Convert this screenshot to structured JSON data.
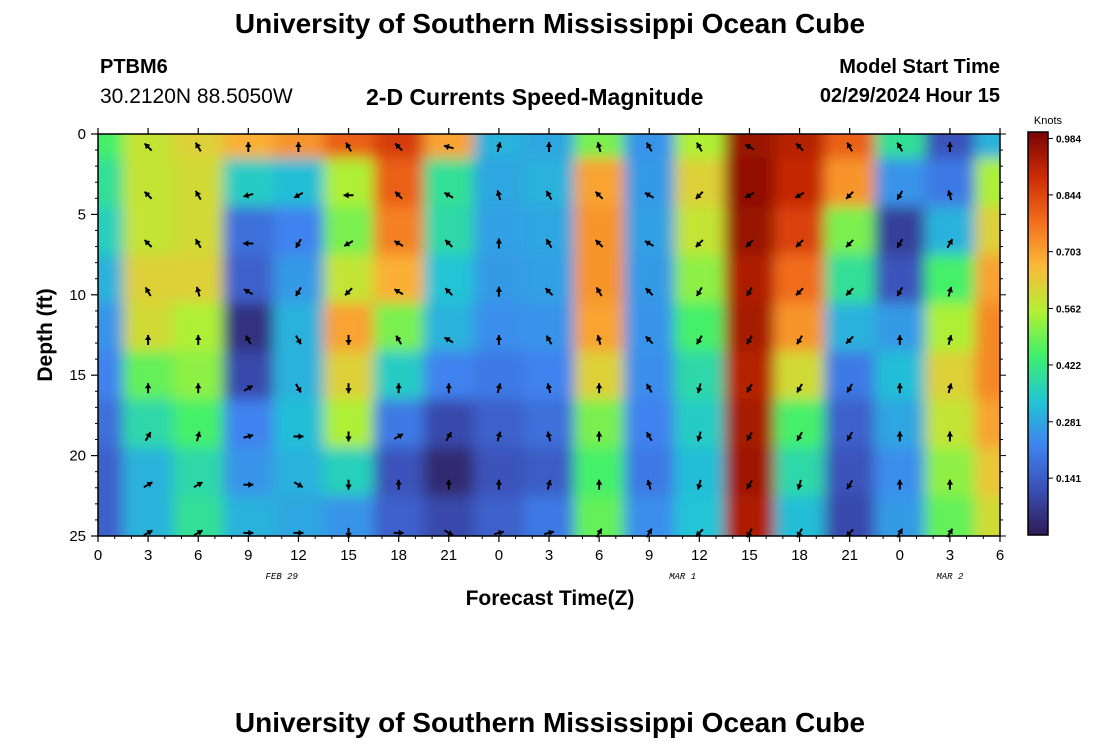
{
  "header": {
    "title": "University of Southern Mississippi Ocean Cube",
    "station": "PTBM6",
    "coordinates": "30.2120N  88.5050W",
    "subtitle": "2-D Currents Speed-Magnitude",
    "model_start_label": "Model Start Time",
    "model_start_value": "02/29/2024 Hour 15"
  },
  "footer": {
    "title": "University of Southern Mississippi Ocean Cube"
  },
  "chart_data": {
    "type": "heatmap",
    "title": "2-D Currents Speed-Magnitude",
    "xlabel": "Forecast Time(Z)",
    "ylabel": "Depth (ft)",
    "x_hours": [
      0,
      3,
      6,
      9,
      12,
      15,
      18,
      21,
      24,
      27,
      30,
      33,
      36,
      39,
      42,
      45,
      48,
      51,
      54
    ],
    "x_tick_labels": [
      "0",
      "3",
      "6",
      "9",
      "12",
      "15",
      "18",
      "21",
      "0",
      "3",
      "6",
      "9",
      "12",
      "15",
      "18",
      "21",
      "0",
      "3",
      "6"
    ],
    "date_labels": [
      {
        "label": "FEB 29",
        "hour": 11
      },
      {
        "label": "MAR 1",
        "hour": 35
      },
      {
        "label": "MAR 2",
        "hour": 51
      }
    ],
    "xlim": [
      0,
      54
    ],
    "y_ticks": [
      0,
      5,
      10,
      15,
      20,
      25
    ],
    "ylim": [
      0,
      25
    ],
    "y_inverted": true,
    "colorbar": {
      "title": "Knots",
      "ticks": [
        0.141,
        0.281,
        0.422,
        0.562,
        0.703,
        0.844,
        0.984
      ],
      "tick_labels": [
        "0.141",
        "0.281",
        "0.422",
        "0.562",
        "0.703",
        "0.844",
        "0.984"
      ],
      "range": [
        0.0,
        1.0
      ],
      "colors": [
        "#2d1b55",
        "#3a4fb5",
        "#3f83f0",
        "#20c6d4",
        "#3ef06c",
        "#b3f032",
        "#fbb93a",
        "#f26e1c",
        "#cc2c06",
        "#7a0403"
      ]
    },
    "depth_rows_ft": [
      0,
      3,
      6,
      9,
      12,
      15,
      18,
      21,
      24
    ],
    "speed_knots": [
      [
        0.45,
        0.58,
        0.62,
        0.68,
        0.72,
        0.8,
        0.86,
        0.7,
        0.3,
        0.28,
        0.5,
        0.25,
        0.55,
        0.96,
        0.92,
        0.8,
        0.4,
        0.12,
        0.3
      ],
      [
        0.4,
        0.58,
        0.6,
        0.35,
        0.32,
        0.55,
        0.8,
        0.4,
        0.28,
        0.3,
        0.7,
        0.26,
        0.62,
        0.97,
        0.9,
        0.72,
        0.25,
        0.2,
        0.55
      ],
      [
        0.36,
        0.58,
        0.6,
        0.18,
        0.22,
        0.5,
        0.75,
        0.38,
        0.27,
        0.28,
        0.72,
        0.27,
        0.58,
        0.96,
        0.85,
        0.5,
        0.08,
        0.3,
        0.62
      ],
      [
        0.3,
        0.62,
        0.62,
        0.15,
        0.26,
        0.58,
        0.68,
        0.33,
        0.26,
        0.27,
        0.72,
        0.26,
        0.52,
        0.93,
        0.78,
        0.4,
        0.12,
        0.45,
        0.7
      ],
      [
        0.25,
        0.6,
        0.55,
        0.05,
        0.3,
        0.7,
        0.5,
        0.3,
        0.24,
        0.25,
        0.7,
        0.25,
        0.45,
        0.94,
        0.72,
        0.3,
        0.26,
        0.55,
        0.74
      ],
      [
        0.22,
        0.48,
        0.52,
        0.1,
        0.3,
        0.62,
        0.35,
        0.22,
        0.2,
        0.22,
        0.62,
        0.24,
        0.38,
        0.92,
        0.6,
        0.2,
        0.32,
        0.62,
        0.74
      ],
      [
        0.18,
        0.38,
        0.45,
        0.22,
        0.32,
        0.55,
        0.2,
        0.1,
        0.15,
        0.18,
        0.5,
        0.22,
        0.35,
        0.94,
        0.45,
        0.15,
        0.28,
        0.58,
        0.7
      ],
      [
        0.15,
        0.3,
        0.38,
        0.25,
        0.3,
        0.36,
        0.12,
        0.03,
        0.12,
        0.14,
        0.45,
        0.2,
        0.32,
        0.95,
        0.38,
        0.12,
        0.24,
        0.52,
        0.64
      ],
      [
        0.15,
        0.3,
        0.4,
        0.3,
        0.28,
        0.25,
        0.15,
        0.1,
        0.15,
        0.2,
        0.48,
        0.24,
        0.33,
        0.93,
        0.32,
        0.1,
        0.26,
        0.48,
        0.6
      ]
    ],
    "vector_directions_deg": [
      [
        315,
        315,
        330,
        0,
        0,
        330,
        315,
        285,
        15,
        0,
        345,
        330,
        330,
        300,
        315,
        330,
        330,
        0,
        345
      ],
      [
        300,
        315,
        330,
        255,
        240,
        270,
        315,
        300,
        345,
        330,
        315,
        300,
        225,
        240,
        240,
        225,
        210,
        345,
        15
      ],
      [
        300,
        315,
        330,
        270,
        210,
        240,
        300,
        315,
        0,
        330,
        315,
        300,
        225,
        225,
        225,
        225,
        210,
        30,
        15
      ],
      [
        315,
        330,
        345,
        300,
        210,
        225,
        300,
        315,
        0,
        315,
        330,
        315,
        210,
        210,
        225,
        225,
        210,
        15,
        15
      ],
      [
        330,
        0,
        0,
        330,
        150,
        180,
        330,
        300,
        0,
        330,
        345,
        315,
        210,
        210,
        210,
        225,
        0,
        15,
        15
      ],
      [
        0,
        0,
        0,
        60,
        150,
        180,
        0,
        0,
        15,
        345,
        0,
        330,
        195,
        210,
        210,
        210,
        0,
        15,
        15
      ],
      [
        60,
        30,
        15,
        75,
        90,
        180,
        60,
        30,
        15,
        345,
        0,
        330,
        195,
        210,
        210,
        210,
        0,
        0,
        15
      ],
      [
        75,
        60,
        60,
        90,
        120,
        180,
        0,
        0,
        0,
        15,
        0,
        345,
        195,
        210,
        195,
        210,
        0,
        0,
        15
      ],
      [
        75,
        60,
        60,
        90,
        90,
        180,
        90,
        120,
        75,
        75,
        30,
        30,
        225,
        210,
        210,
        225,
        30,
        30,
        15
      ]
    ]
  }
}
